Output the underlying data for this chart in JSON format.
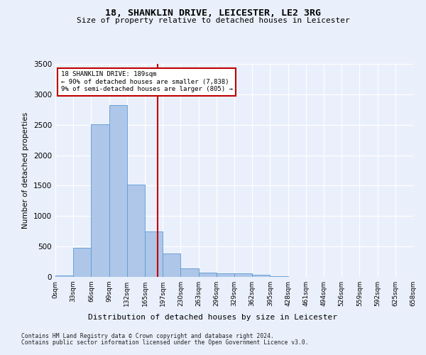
{
  "title": "18, SHANKLIN DRIVE, LEICESTER, LE2 3RG",
  "subtitle": "Size of property relative to detached houses in Leicester",
  "xlabel": "Distribution of detached houses by size in Leicester",
  "ylabel": "Number of detached properties",
  "bar_values": [
    20,
    480,
    2510,
    2820,
    1520,
    750,
    390,
    145,
    75,
    60,
    55,
    30,
    10,
    0,
    0,
    0,
    0,
    0,
    0,
    0
  ],
  "bin_labels": [
    "0sqm",
    "33sqm",
    "66sqm",
    "99sqm",
    "132sqm",
    "165sqm",
    "197sqm",
    "230sqm",
    "263sqm",
    "296sqm",
    "329sqm",
    "362sqm",
    "395sqm",
    "428sqm",
    "461sqm",
    "494sqm",
    "526sqm",
    "559sqm",
    "592sqm",
    "625sqm",
    "658sqm"
  ],
  "bar_color": "#aec6e8",
  "bar_edge_color": "#5b9bd5",
  "vline_color": "#c00000",
  "vline_x": 5.73,
  "annotation_title": "18 SHANKLIN DRIVE: 189sqm",
  "annotation_line1": "← 90% of detached houses are smaller (7,838)",
  "annotation_line2": "9% of semi-detached houses are larger (805) →",
  "annotation_box_color": "#c00000",
  "ylim": [
    0,
    3500
  ],
  "yticks": [
    0,
    500,
    1000,
    1500,
    2000,
    2500,
    3000,
    3500
  ],
  "bg_color": "#eaf0fb",
  "fig_bg_color": "#eaf0fb",
  "grid_color": "#ffffff",
  "footer_line1": "Contains HM Land Registry data © Crown copyright and database right 2024.",
  "footer_line2": "Contains public sector information licensed under the Open Government Licence v3.0."
}
